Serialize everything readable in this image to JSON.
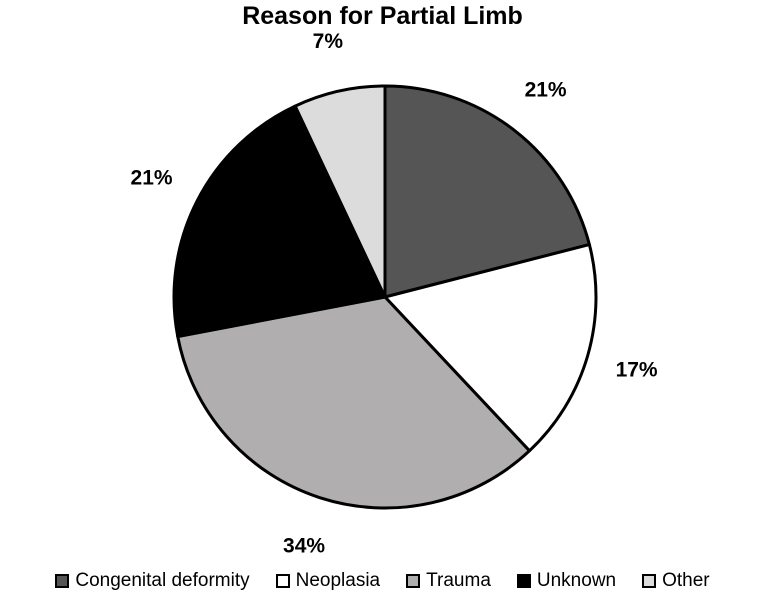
{
  "chart_data": {
    "type": "pie",
    "title": "Reason for Partial Limb",
    "slices": [
      {
        "label": "Congenital deformity",
        "value": 21,
        "display": "21%",
        "color": "#555555"
      },
      {
        "label": "Neoplasia",
        "value": 17,
        "display": "17%",
        "color": "#ffffff"
      },
      {
        "label": "Trauma",
        "value": 34,
        "display": "34%",
        "color": "#b0aeae"
      },
      {
        "label": "Unknown",
        "value": 21,
        "display": "21%",
        "color": "#000000"
      },
      {
        "label": "Other",
        "value": 7,
        "display": "7%",
        "color": "#dcdcdc"
      }
    ],
    "legend_position": "bottom",
    "start_angle": "12 o'clock",
    "direction": "clockwise"
  }
}
